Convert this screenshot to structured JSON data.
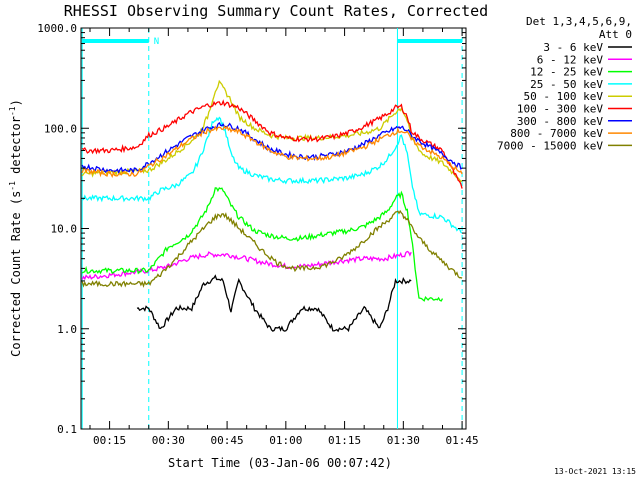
{
  "chart_data": {
    "type": "line",
    "title": "RHESSI Observing Summary Count Rates, Corrected",
    "xlabel": "Start Time (03-Jan-06 00:07:42)",
    "ylabel_main": "Corrected Count Rate (s",
    "ylabel_sup1": "-1",
    "ylabel_mid": " detector",
    "ylabel_sup2": "-1",
    "ylabel_end": ")",
    "y_scale": "log",
    "ylim": [
      0.1,
      1000
    ],
    "xlim": [
      7.7,
      106
    ],
    "x_unit": "minutes after 00:00",
    "y_ticks": [
      {
        "value": 0.1,
        "label": "0.1"
      },
      {
        "value": 1,
        "label": "1.0"
      },
      {
        "value": 10,
        "label": "10.0"
      },
      {
        "value": 100,
        "label": "100.0"
      },
      {
        "value": 1000,
        "label": "1000.0"
      }
    ],
    "x_ticks": [
      {
        "value": 15,
        "label": "00:15"
      },
      {
        "value": 30,
        "label": "00:30"
      },
      {
        "value": 45,
        "label": "00:45"
      },
      {
        "value": 60,
        "label": "01:00"
      },
      {
        "value": 75,
        "label": "01:15"
      },
      {
        "value": 90,
        "label": "01:30"
      },
      {
        "value": 105,
        "label": "01:45"
      }
    ],
    "legend_header_1": "Det 1,3,4,5,6,9,",
    "legend_header_2": "Att 0",
    "legend_position": "right",
    "night_marker": "N",
    "sunlight_bars": [
      [
        8,
        25
      ],
      [
        88.5,
        105
      ]
    ],
    "boundaries": [
      {
        "x": 8,
        "style": "solid"
      },
      {
        "x": 25,
        "style": "dashed"
      },
      {
        "x": 88.5,
        "style": "solid"
      },
      {
        "x": 105,
        "style": "dashed"
      }
    ],
    "timestamp": "13-Oct-2021 13:15",
    "series": [
      {
        "name": "3 - 6 keV",
        "color": "#000000",
        "x": [
          22,
          25,
          28,
          32,
          36,
          39,
          42,
          44,
          46,
          48,
          52,
          56,
          60,
          64,
          68,
          72,
          76,
          80,
          84,
          86,
          88,
          90,
          92
        ],
        "y": [
          1.6,
          1.6,
          1.0,
          1.6,
          1.6,
          2.8,
          3.2,
          3.0,
          1.5,
          3.0,
          1.6,
          1.0,
          1.0,
          1.6,
          1.6,
          1.0,
          1.0,
          1.6,
          1.0,
          1.6,
          3.0,
          3.0,
          3.0
        ]
      },
      {
        "name": "6 - 12 keV",
        "color": "#ff00ff",
        "x": [
          8,
          25,
          30,
          35,
          40,
          45,
          50,
          55,
          60,
          65,
          70,
          75,
          80,
          85,
          90,
          92
        ],
        "y": [
          3.2,
          3.8,
          4.2,
          5.0,
          5.5,
          5.5,
          5.0,
          4.5,
          4.2,
          4.2,
          4.5,
          4.8,
          5.0,
          5.0,
          5.5,
          5.8
        ]
      },
      {
        "name": "12 - 25 keV",
        "color": "#00ff00",
        "x": [
          8,
          25,
          30,
          35,
          38,
          40,
          42,
          44,
          46,
          48,
          52,
          56,
          60,
          64,
          68,
          72,
          76,
          80,
          84,
          86,
          88,
          89.5,
          91,
          92,
          94,
          100
        ],
        "y": [
          3.8,
          3.8,
          6.5,
          8.5,
          12,
          16,
          25,
          24,
          17,
          13,
          9.5,
          8.5,
          8.0,
          8.0,
          8.5,
          9.0,
          9.5,
          10.5,
          13,
          15,
          20,
          22,
          15,
          8.5,
          2.0,
          2.0
        ]
      },
      {
        "name": "25 - 50 keV",
        "color": "#00ffff",
        "x": [
          8,
          25,
          28,
          32,
          36,
          38,
          40,
          41.5,
          43,
          44.5,
          46,
          48,
          52,
          56,
          60,
          64,
          68,
          72,
          76,
          80,
          84,
          86,
          88,
          89.5,
          91,
          92,
          94,
          100,
          105
        ],
        "y": [
          20,
          20,
          24,
          27,
          35,
          50,
          80,
          120,
          130,
          95,
          55,
          40,
          34,
          31,
          30,
          30,
          30,
          31,
          32,
          35,
          42,
          50,
          65,
          85,
          55,
          30,
          14,
          13,
          9
        ]
      },
      {
        "name": "50 - 100 keV",
        "color": "#cccc00",
        "x": [
          8,
          25,
          30,
          35,
          38,
          40,
          42,
          43,
          44,
          46,
          48,
          52,
          56,
          60,
          64,
          68,
          72,
          76,
          80,
          84,
          86,
          88,
          89.5,
          91,
          92,
          95,
          100,
          105
        ],
        "y": [
          35,
          38,
          50,
          70,
          90,
          130,
          240,
          280,
          250,
          190,
          130,
          100,
          85,
          80,
          80,
          80,
          82,
          85,
          90,
          100,
          120,
          145,
          160,
          120,
          80,
          55,
          45,
          30
        ]
      },
      {
        "name": "100 - 300 keV",
        "color": "#ff0000",
        "x": [
          8,
          15,
          22,
          25,
          30,
          35,
          40,
          44,
          48,
          52,
          56,
          60,
          64,
          68,
          72,
          76,
          80,
          84,
          86,
          88,
          89.5,
          91,
          92,
          94,
          100,
          105
        ],
        "y": [
          60,
          60,
          65,
          85,
          105,
          140,
          170,
          180,
          160,
          120,
          90,
          80,
          78,
          78,
          82,
          90,
          105,
          125,
          140,
          160,
          165,
          130,
          95,
          80,
          60,
          25
        ]
      },
      {
        "name": "300 - 800 keV",
        "color": "#0000ff",
        "x": [
          8,
          15,
          22,
          25,
          30,
          35,
          40,
          44,
          48,
          52,
          56,
          60,
          64,
          68,
          72,
          76,
          80,
          84,
          86,
          88,
          89.5,
          91,
          92,
          94,
          100,
          105
        ],
        "y": [
          42,
          38,
          38,
          45,
          60,
          80,
          100,
          110,
          100,
          78,
          62,
          55,
          52,
          52,
          55,
          60,
          70,
          85,
          92,
          100,
          102,
          95,
          85,
          75,
          55,
          40
        ]
      },
      {
        "name": "800 - 7000 keV",
        "color": "#ff8800",
        "x": [
          8,
          15,
          22,
          25,
          30,
          35,
          40,
          44,
          48,
          52,
          56,
          60,
          64,
          68,
          72,
          76,
          80,
          84,
          86,
          88,
          89.5,
          91,
          92,
          94,
          100,
          105
        ],
        "y": [
          38,
          35,
          35,
          42,
          55,
          75,
          95,
          100,
          92,
          75,
          60,
          52,
          50,
          50,
          52,
          58,
          65,
          78,
          85,
          92,
          95,
          88,
          78,
          68,
          50,
          35
        ]
      },
      {
        "name": "7000 - 15000 keV",
        "color": "#808000",
        "x": [
          8,
          25,
          28,
          32,
          36,
          40,
          42,
          44,
          46,
          50,
          54,
          58,
          62,
          66,
          70,
          74,
          78,
          82,
          86,
          88,
          89.5,
          91,
          94,
          98,
          102,
          105
        ],
        "y": [
          2.8,
          2.8,
          3.5,
          5,
          7.5,
          11,
          13,
          14,
          12,
          8.5,
          6,
          4.5,
          4,
          4,
          4.3,
          5,
          6.5,
          9,
          12,
          14,
          14.5,
          12,
          8,
          5.5,
          4,
          3.2
        ]
      }
    ]
  }
}
